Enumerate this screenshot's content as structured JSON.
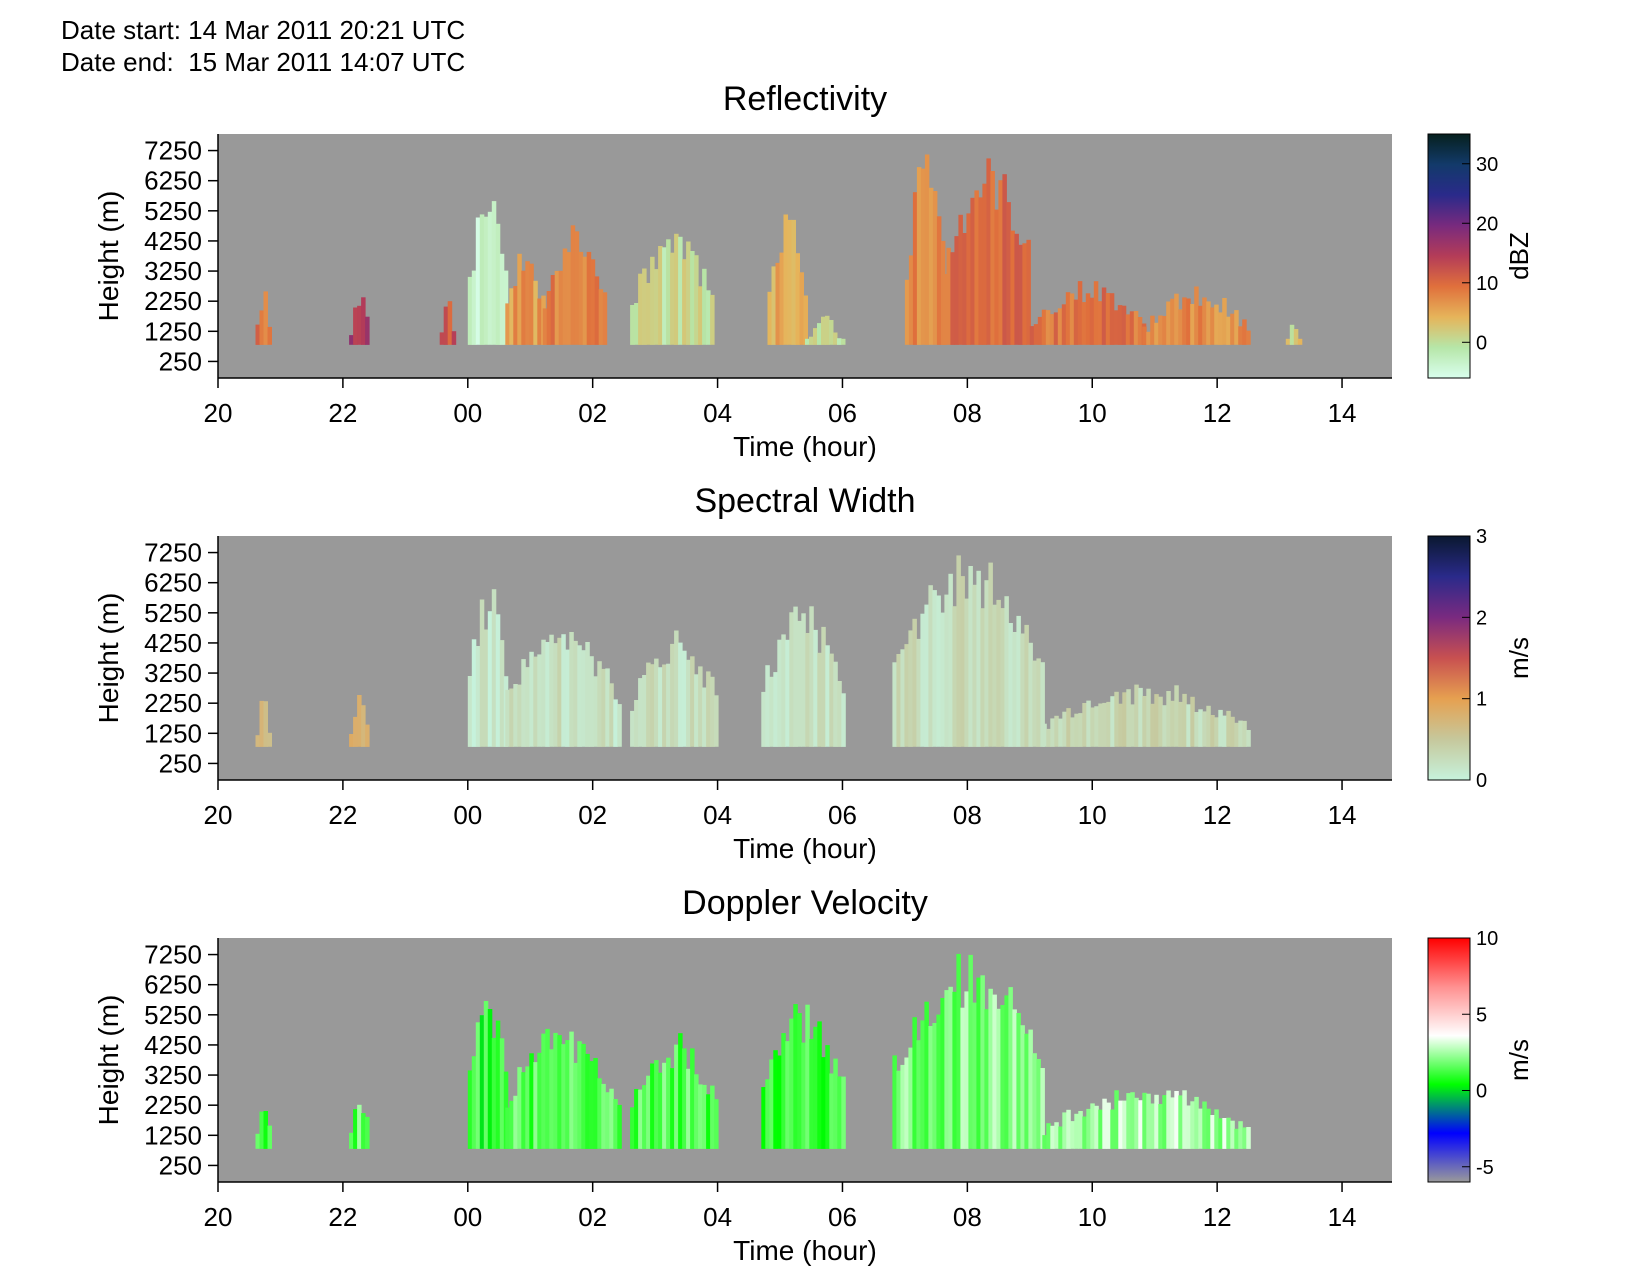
{
  "header": {
    "date_start_label": "Date start:",
    "date_start_value": "14 Mar 2011 20:21 UTC",
    "date_end_label": "Date end:",
    "date_end_value": "15 Mar 2011 14:07 UTC"
  },
  "colors": {
    "background_gray": "#999999",
    "reflectivity_scale": [
      "#d9ffee",
      "#b6e6a8",
      "#e6b45a",
      "#e0703c",
      "#b43c58",
      "#782a7e",
      "#2a2a8a",
      "#123a6a",
      "#06201e"
    ],
    "spectral_width_scale": [
      "#c6f2dc",
      "#c6c89c",
      "#e6a050",
      "#c85050",
      "#7a2a80",
      "#2a2a8a",
      "#0a1830"
    ],
    "doppler_velocity_scale": [
      "#9a9a9a",
      "#0000ff",
      "#00ff00",
      "#ffffff",
      "#ff9090",
      "#ff0000"
    ]
  },
  "chart_data": [
    {
      "type": "heatmap",
      "title": "Reflectivity",
      "xlabel": "Time (hour)",
      "ylabel": "Height (m)",
      "x_ticks": [
        "20",
        "22",
        "00",
        "02",
        "04",
        "06",
        "08",
        "10",
        "12",
        "14"
      ],
      "y_ticks": [
        "7250",
        "6250",
        "5250",
        "4250",
        "3250",
        "2250",
        "1250",
        "250"
      ],
      "colorbar": {
        "label": "dBZ",
        "ticks": [
          "30",
          "20",
          "10",
          "0"
        ],
        "range": [
          -6,
          35
        ]
      },
      "echoes": [
        {
          "t0": -3.4,
          "t1": -3.2,
          "h": 2400,
          "v": 9
        },
        {
          "t0": -1.9,
          "t1": -1.6,
          "h": 2300,
          "v": 16
        },
        {
          "t0": -0.45,
          "t1": -0.25,
          "h": 2300,
          "v": 12
        },
        {
          "t0": 0.0,
          "t1": 0.6,
          "h": 5400,
          "v": -3
        },
        {
          "t0": 0.6,
          "t1": 1.2,
          "h": 3600,
          "v": 6
        },
        {
          "t0": 1.2,
          "t1": 2.2,
          "h": 4200,
          "v": 8
        },
        {
          "t0": 2.6,
          "t1": 3.9,
          "h": 4100,
          "v": 0
        },
        {
          "t0": 4.8,
          "t1": 5.4,
          "h": 4600,
          "v": 5
        },
        {
          "t0": 5.4,
          "t1": 6.0,
          "h": 1600,
          "v": 0
        },
        {
          "t0": 7.0,
          "t1": 7.6,
          "h": 6300,
          "v": 8
        },
        {
          "t0": 7.6,
          "t1": 9.0,
          "h": 6200,
          "v": 10
        },
        {
          "t0": 9.0,
          "t1": 10.8,
          "h": 2600,
          "v": 9
        },
        {
          "t0": 10.8,
          "t1": 12.5,
          "h": 2400,
          "v": 7
        },
        {
          "t0": 13.1,
          "t1": 13.3,
          "h": 1500,
          "v": 2
        }
      ]
    },
    {
      "type": "heatmap",
      "title": "Spectral Width",
      "xlabel": "Time (hour)",
      "ylabel": "Height (m)",
      "x_ticks": [
        "20",
        "22",
        "00",
        "02",
        "04",
        "06",
        "08",
        "10",
        "12",
        "14"
      ],
      "y_ticks": [
        "7250",
        "6250",
        "5250",
        "4250",
        "3250",
        "2250",
        "1250",
        "250"
      ],
      "colorbar": {
        "label": "m/s",
        "ticks": [
          "3",
          "2",
          "1",
          "0"
        ],
        "range": [
          0,
          3
        ]
      },
      "echoes": [
        {
          "t0": -3.4,
          "t1": -3.2,
          "h": 2400,
          "v": 0.6
        },
        {
          "t0": -1.9,
          "t1": -1.6,
          "h": 2300,
          "v": 0.8
        },
        {
          "t0": 0.0,
          "t1": 0.6,
          "h": 5500,
          "v": 0.1
        },
        {
          "t0": 0.6,
          "t1": 2.4,
          "h": 4400,
          "v": 0.2
        },
        {
          "t0": 2.6,
          "t1": 4.0,
          "h": 4100,
          "v": 0.2
        },
        {
          "t0": 4.7,
          "t1": 6.0,
          "h": 5000,
          "v": 0.2
        },
        {
          "t0": 6.8,
          "t1": 9.2,
          "h": 6400,
          "v": 0.25
        },
        {
          "t0": 9.2,
          "t1": 12.5,
          "h": 2600,
          "v": 0.3
        }
      ]
    },
    {
      "type": "heatmap",
      "title": "Doppler Velocity",
      "xlabel": "Time (hour)",
      "ylabel": "Height (m)",
      "x_ticks": [
        "20",
        "22",
        "00",
        "02",
        "04",
        "06",
        "08",
        "10",
        "12",
        "14"
      ],
      "y_ticks": [
        "7250",
        "6250",
        "5250",
        "4250",
        "3250",
        "2250",
        "1250",
        "250"
      ],
      "colorbar": {
        "label": "m/s",
        "ticks": [
          "10",
          "5",
          "0",
          "-5"
        ],
        "range": [
          -6,
          10
        ]
      },
      "echoes": [
        {
          "t0": -3.4,
          "t1": -3.2,
          "h": 2400,
          "v": 1.5
        },
        {
          "t0": -1.9,
          "t1": -1.6,
          "h": 2300,
          "v": 1.5
        },
        {
          "t0": 0.0,
          "t1": 0.6,
          "h": 5500,
          "v": 1.0
        },
        {
          "t0": 0.6,
          "t1": 2.4,
          "h": 4400,
          "v": 1.5
        },
        {
          "t0": 2.6,
          "t1": 4.0,
          "h": 4100,
          "v": 1.5
        },
        {
          "t0": 4.7,
          "t1": 6.0,
          "h": 5000,
          "v": 1.0
        },
        {
          "t0": 6.8,
          "t1": 9.2,
          "h": 6400,
          "v": 2.0
        },
        {
          "t0": 9.2,
          "t1": 12.5,
          "h": 2600,
          "v": 2.5
        }
      ]
    }
  ]
}
